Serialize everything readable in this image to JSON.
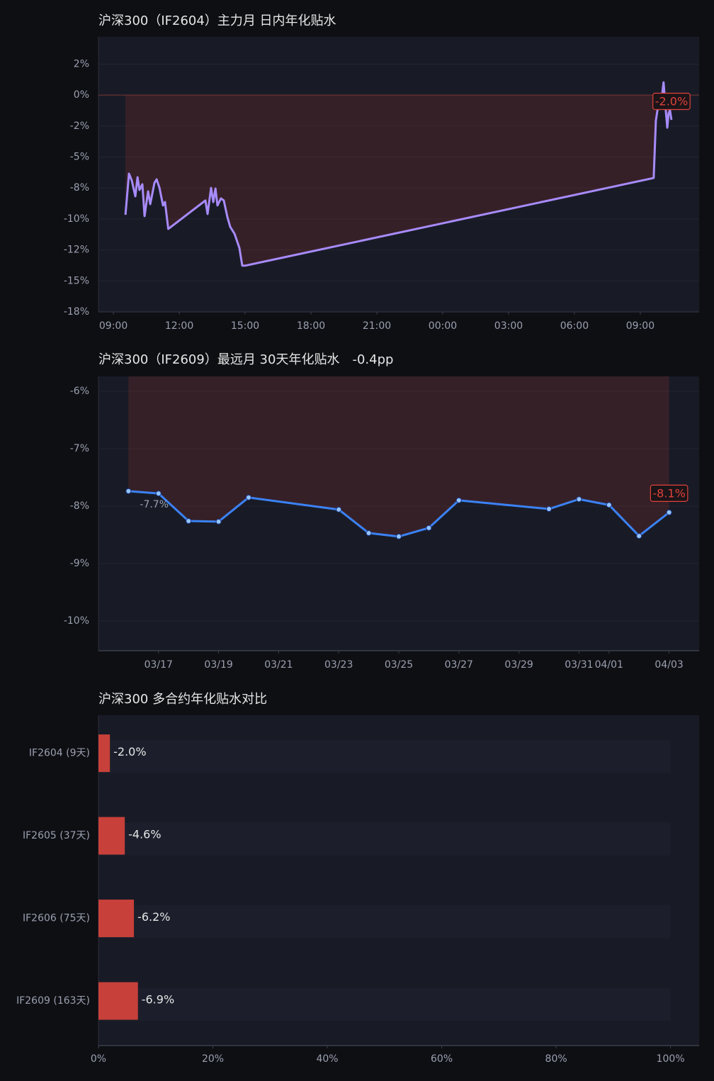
{
  "chart_data": [
    {
      "type": "line",
      "title": "沪深300（IF2604）主力月 日内年化贴水",
      "x": [
        9.55,
        9.71,
        9.84,
        10.0,
        10.1,
        10.19,
        10.32,
        10.42,
        10.58,
        10.68,
        10.87,
        10.97,
        11.1,
        11.26,
        11.35,
        11.5,
        13.19,
        13.29,
        13.45,
        13.55,
        13.65,
        13.74,
        13.9,
        14.03,
        14.19,
        14.32,
        14.52,
        14.74,
        14.87,
        15.0,
        33.61,
        33.71,
        33.81,
        33.94,
        34.06,
        34.16,
        34.23,
        34.29,
        34.35,
        34.42
      ],
      "values": [
        -9.66,
        -6.34,
        -6.91,
        -8.17,
        -6.63,
        -7.66,
        -7.2,
        -9.77,
        -7.77,
        -8.8,
        -7.09,
        -6.8,
        -7.49,
        -8.91,
        -8.63,
        -10.8,
        -8.51,
        -9.6,
        -7.49,
        -8.63,
        -7.54,
        -8.91,
        -8.34,
        -8.51,
        -9.83,
        -10.63,
        -11.2,
        -12.34,
        -13.77,
        -13.77,
        -6.69,
        -2.06,
        -0.91,
        -0.8,
        1.03,
        -1.2,
        -2.63,
        -1.49,
        -1.2,
        -2.0
      ],
      "last_label": "-2.0%",
      "color": "#a78bfa",
      "fill_color": "#c0392b",
      "baseline": 0,
      "xlim": [
        8.32,
        35.68
      ],
      "xticks": [
        {
          "value": 9,
          "label": "09:00"
        },
        {
          "value": 12,
          "label": "12:00"
        },
        {
          "value": 15,
          "label": "15:00"
        },
        {
          "value": 18,
          "label": "18:00"
        },
        {
          "value": 21,
          "label": "21:00"
        },
        {
          "value": 24,
          "label": "00:00"
        },
        {
          "value": 27,
          "label": "03:00"
        },
        {
          "value": 30,
          "label": "06:00"
        },
        {
          "value": 33,
          "label": "09:00"
        }
      ],
      "ylim": [
        -17.5,
        4.7
      ],
      "yticks": [
        {
          "value": 2.5,
          "label": "2%"
        },
        {
          "value": 0,
          "label": "0%"
        },
        {
          "value": -2.5,
          "label": "-2%"
        },
        {
          "value": -5,
          "label": "-5%"
        },
        {
          "value": -7.5,
          "label": "-8%"
        },
        {
          "value": -10,
          "label": "-10%"
        },
        {
          "value": -12.5,
          "label": "-12%"
        },
        {
          "value": -15,
          "label": "-15%"
        },
        {
          "value": -17.5,
          "label": "-18%"
        }
      ],
      "grid": true
    },
    {
      "type": "line",
      "title": "沪深300（IF2609）最远月 30天年化贴水",
      "subtitle": "-0.4pp",
      "x": [
        "03/16",
        "03/17",
        "03/18",
        "03/19",
        "03/20",
        "03/23",
        "03/24",
        "03/25",
        "03/26",
        "03/27",
        "03/30",
        "03/31",
        "04/01",
        "04/02",
        "04/03"
      ],
      "values": [
        -7.74,
        -7.78,
        -8.26,
        -8.27,
        -7.85,
        -8.06,
        -8.47,
        -8.53,
        -8.38,
        -7.9,
        -8.05,
        -7.88,
        -7.98,
        -8.52,
        -8.11
      ],
      "first_label": "-7.7%",
      "last_label": "-8.1%",
      "color": "#3b82f6",
      "marker_color": "#93c5fd",
      "markers": true,
      "fill_color": "#c0392b",
      "baseline": 0,
      "xlim": [
        "03/15",
        "04/04"
      ],
      "xticks": [
        "03/17",
        "03/19",
        "03/21",
        "03/23",
        "03/25",
        "03/27",
        "03/29",
        "03/31",
        "04/01",
        "04/03"
      ],
      "ylim": [
        -10.52,
        -5.74
      ],
      "yticks": [
        {
          "value": -6,
          "label": "-6%"
        },
        {
          "value": -7,
          "label": "-7%"
        },
        {
          "value": -8,
          "label": "-8%"
        },
        {
          "value": -9,
          "label": "-9%"
        },
        {
          "value": -10,
          "label": "-10%"
        }
      ],
      "grid": true
    },
    {
      "type": "bar",
      "orientation": "horizontal",
      "title": "沪深300 多合约年化贴水对比",
      "categories": [
        "IF2604 (9天)",
        "IF2605 (37天)",
        "IF2606 (75天)",
        "IF2609 (163天)"
      ],
      "values": [
        -2.0,
        -4.6,
        -6.2,
        -6.9
      ],
      "value_labels": [
        "-2.0%",
        "-4.6%",
        "-6.2%",
        "-6.9%"
      ],
      "color": "#c8403a",
      "xlim": [
        0,
        105
      ],
      "xticks": [
        {
          "value": 0,
          "label": "0%"
        },
        {
          "value": 20,
          "label": "20%"
        },
        {
          "value": 40,
          "label": "40%"
        },
        {
          "value": 60,
          "label": "60%"
        },
        {
          "value": 80,
          "label": "80%"
        },
        {
          "value": 100,
          "label": "100%"
        }
      ]
    }
  ]
}
